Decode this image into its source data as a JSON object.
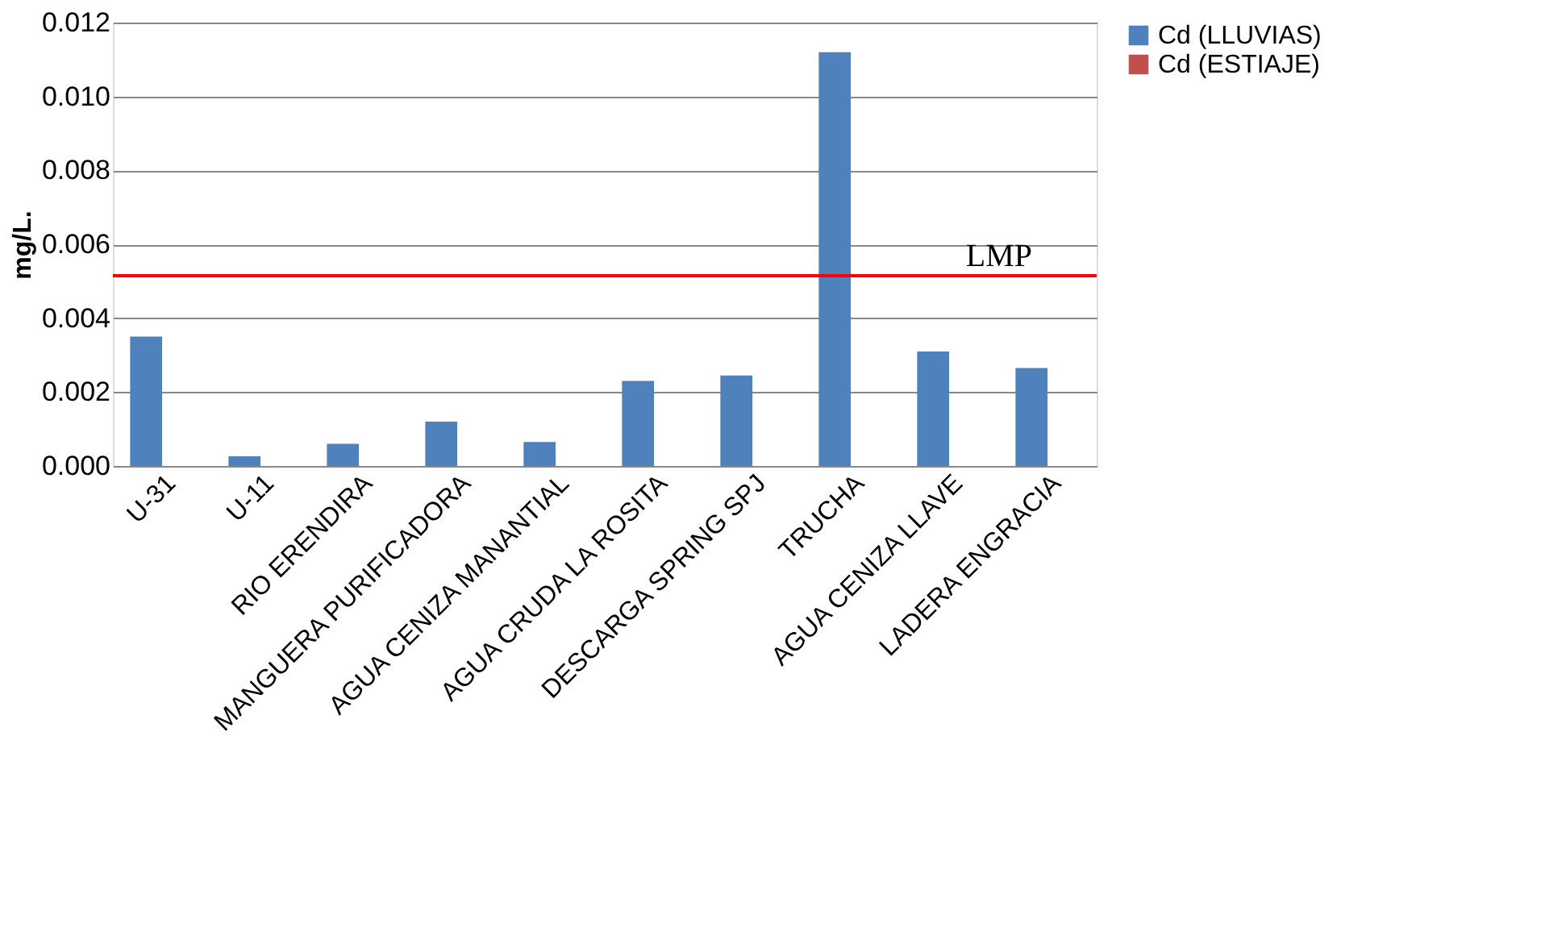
{
  "chart_data": {
    "type": "bar",
    "ylabel": "mg/L.",
    "categories": [
      "U-31",
      "U-11",
      "RIO ERENDIRA",
      "MANGUERA PURIFICADORA",
      "AGUA CENIZA MANANTIAL",
      "AGUA CRUDA LA ROSITA",
      "DESCARGA SPRING  SPJ",
      "TRUCHA",
      "AGUA CENIZA LLAVE",
      "LADERA ENGRACIA"
    ],
    "series": [
      {
        "name": "Cd (LLUVIAS)",
        "color": "#4f81bd",
        "values": [
          0.0035,
          0.00026,
          0.0006,
          0.0012,
          0.00065,
          0.0023,
          0.00245,
          0.0112,
          0.0031,
          0.00265
        ]
      },
      {
        "name": "Cd (ESTIAJE)",
        "color": "#c0504d",
        "values": [
          null,
          null,
          null,
          null,
          null,
          null,
          null,
          null,
          null,
          null
        ]
      }
    ],
    "ylim": [
      0,
      0.012
    ],
    "yticks": [
      {
        "value": 0,
        "label": "0.000"
      },
      0.002,
      0.004,
      0.006,
      0.008,
      {
        "value": 0.01,
        "label": "0.010"
      },
      0.012
    ],
    "ref_lines": [
      {
        "axis": "y",
        "value": 0.00515,
        "label": "LMP",
        "color": "#ff0000"
      }
    ],
    "grid": "y",
    "legend": "right"
  }
}
